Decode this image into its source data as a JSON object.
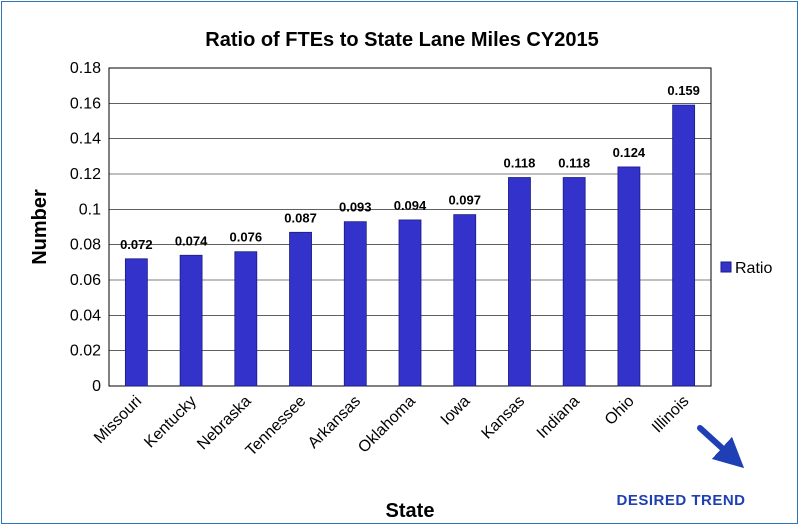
{
  "chart_data": {
    "type": "bar",
    "title": "Ratio of FTEs to State Lane Miles CY2015",
    "xlabel": "State",
    "ylabel": "Number",
    "categories": [
      "Missouri",
      "Kentucky",
      "Nebraska",
      "Tennessee",
      "Arkansas",
      "Oklahoma",
      "Iowa",
      "Kansas",
      "Indiana",
      "Ohio",
      "Illinois"
    ],
    "series": [
      {
        "name": "Ratio",
        "values": [
          0.072,
          0.074,
          0.076,
          0.087,
          0.093,
          0.094,
          0.097,
          0.118,
          0.118,
          0.124,
          0.159
        ],
        "data_labels": [
          "0.072",
          "0.074",
          "0.076",
          "0.087",
          "0.093",
          "0.094",
          "0.097",
          "0.118",
          "0.118",
          "0.124",
          "0.159"
        ]
      }
    ],
    "ylim": [
      0,
      0.18
    ],
    "y_ticks": [
      "0",
      "0.02",
      "0.04",
      "0.06",
      "0.08",
      "0.1",
      "0.12",
      "0.14",
      "0.16",
      "0.18"
    ],
    "grid": true,
    "legend_position": "right",
    "bar_color": "#3333cc",
    "bar_edge_color": "#1a1a80"
  },
  "annotation": {
    "text": "DESIRED TREND",
    "color": "#1f3fb5",
    "icon": "arrow-down-right-icon"
  }
}
